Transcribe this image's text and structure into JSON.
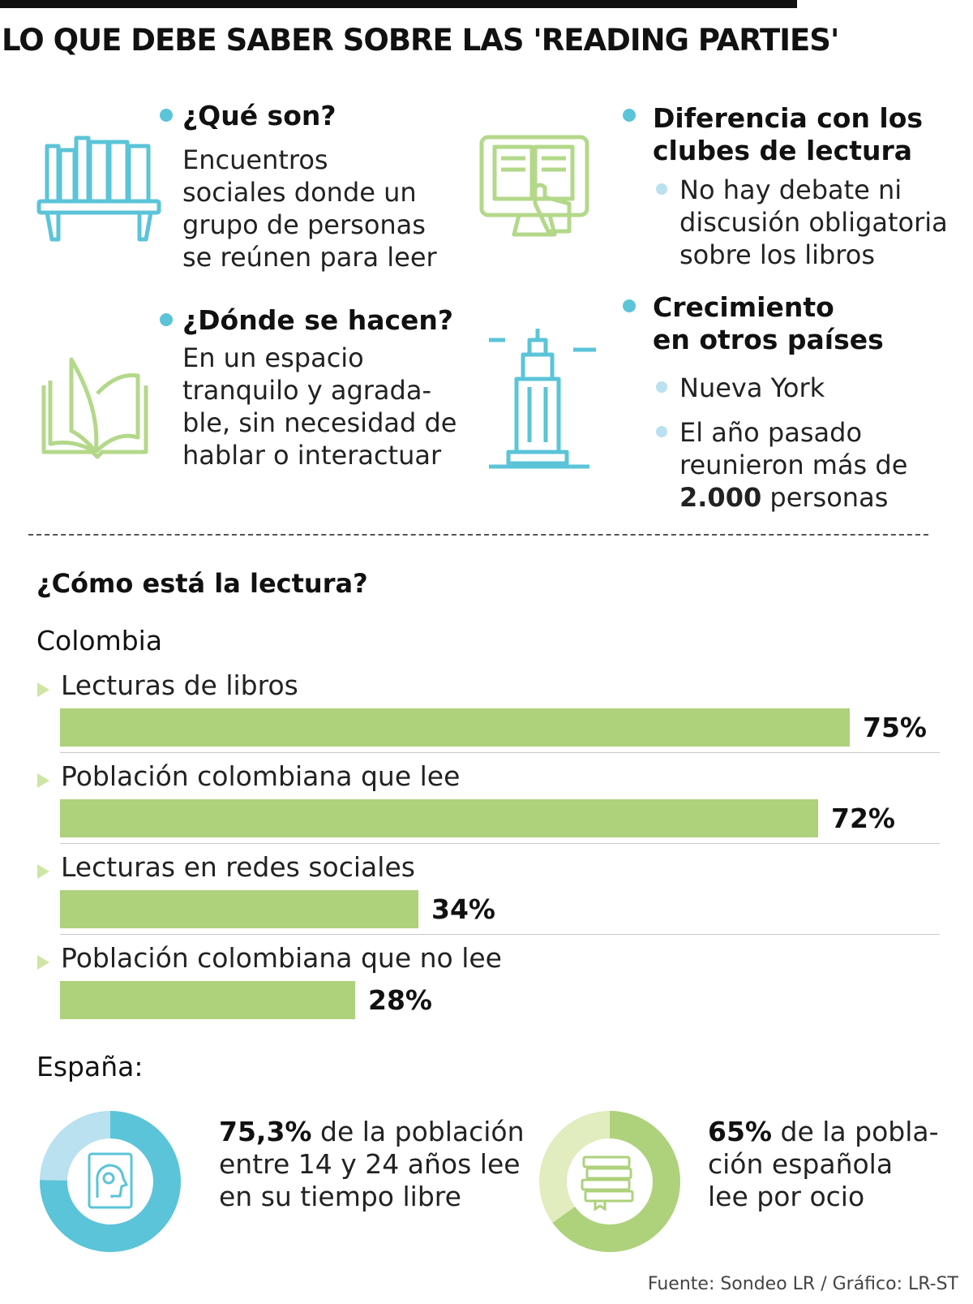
{
  "title": "LO QUE DEBE SABER SOBRE LAS 'READING PARTIES'",
  "info": {
    "que_son": {
      "heading": "¿Qué son?",
      "lines": [
        "Encuentros",
        "sociales donde un",
        "grupo de personas",
        "se reúnen para leer"
      ]
    },
    "donde": {
      "heading": "¿Dónde se hacen?",
      "lines": [
        "En un espacio",
        "tranquilo y agrada-",
        "ble, sin necesidad de",
        "hablar o interactuar"
      ]
    },
    "diferencia": {
      "heading": [
        "Diferencia con los",
        "clubes de lectura"
      ],
      "bullet": [
        "No hay debate ni",
        "discusión obligatoria",
        "sobre los libros"
      ]
    },
    "crecimiento": {
      "heading": [
        "Crecimiento",
        "en otros países"
      ],
      "bullet1": "Nueva York",
      "bullet2": [
        "El año pasado",
        "reunieron más de"
      ],
      "bullet2_bold": "2.000",
      "bullet2_rest": " personas"
    }
  },
  "icons": {
    "que_son": "bookshelf-icon",
    "donde": "open-book-icon",
    "diferencia": "ebook-screen-icon",
    "crecimiento": "skyscraper-icon",
    "donut1": "head-book-icon",
    "donut2": "stacked-books-icon"
  },
  "colors": {
    "blue": "#5bc4d8",
    "light_blue": "#b9e1ef",
    "green": "#aed17c",
    "light_green": "#e1ecbf",
    "icon_green": "#b3d88a"
  },
  "reading": {
    "title": "¿Cómo está la lectura?",
    "colombia_label": "Colombia",
    "espana_label": "España:"
  },
  "chart_data": [
    {
      "type": "bar",
      "orientation": "horizontal",
      "title": "Colombia",
      "categories": [
        "Lecturas de libros",
        "Población colombiana que lee",
        "Lecturas en redes sociales",
        "Población colombiana que no lee"
      ],
      "values": [
        75,
        72,
        34,
        28
      ],
      "value_labels": [
        "75%",
        "72%",
        "34%",
        "28%"
      ],
      "unit": "%",
      "xlim": [
        0,
        75
      ]
    },
    {
      "type": "pie",
      "title": "España",
      "variant": "donut",
      "values": [
        75.3,
        24.7
      ],
      "value_label": "75,3%",
      "text": [
        "de la población",
        "entre 14 y 24 años lee",
        "en su tiempo libre"
      ]
    },
    {
      "type": "pie",
      "title": "España",
      "variant": "donut",
      "values": [
        65,
        35
      ],
      "value_label": "65%",
      "text": [
        "de la pobla-",
        "ción española",
        "lee por ocio"
      ]
    }
  ],
  "source": "Fuente: Sondeo LR / Gráfico: LR-ST"
}
